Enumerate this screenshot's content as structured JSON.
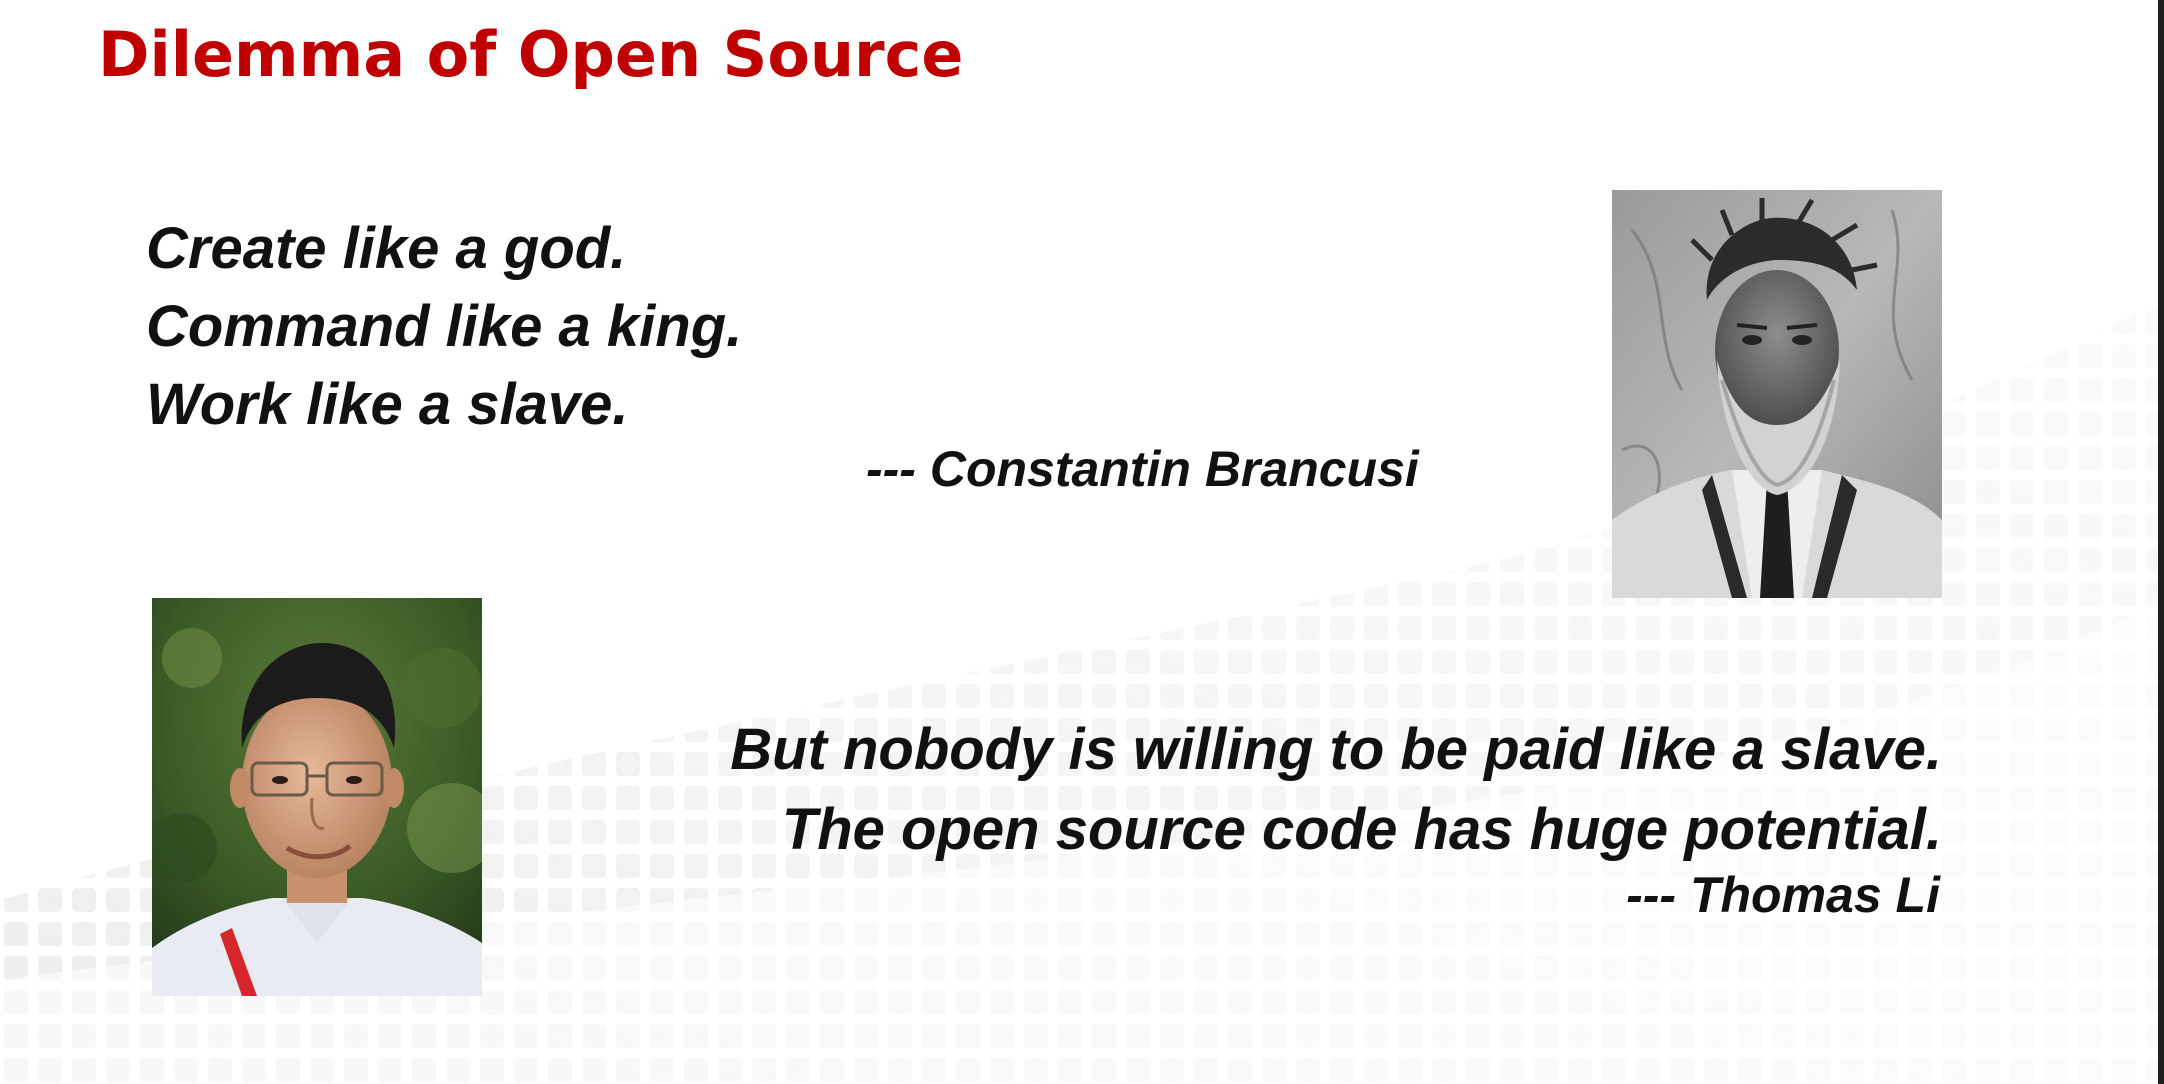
{
  "slide": {
    "title": "Dilemma of Open Source",
    "title_color": "#c00000",
    "quote1": {
      "lines": [
        "Create like a god.",
        "Command like a king.",
        "Work like a slave."
      ],
      "attribution": "--- Constantin Brancusi"
    },
    "quote2": {
      "lines": [
        "But nobody is willing to be paid like a slave.",
        "The open source code has huge potential."
      ],
      "attribution": "--- Thomas Li"
    },
    "photos": {
      "brancusi": "portrait-photo-constantin-brancusi",
      "thomas_li": "portrait-photo-thomas-li"
    }
  }
}
